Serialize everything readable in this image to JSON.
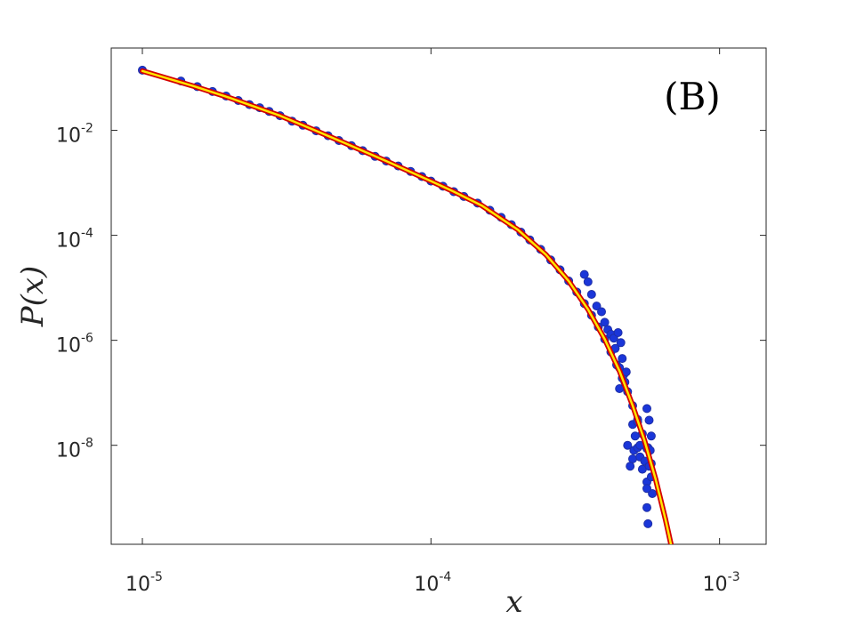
{
  "chart_data": {
    "type": "scatter",
    "title": "",
    "panel_label": "(B)",
    "xlabel": "x",
    "ylabel": "P(x)",
    "xscale": "log",
    "yscale": "log",
    "xlim": [
      7.8e-06,
      0.00145
    ],
    "ylim": [
      1.3e-10,
      0.37
    ],
    "grid": false,
    "x_ticks": [
      {
        "value": 1e-05,
        "base": "10",
        "exp": "-5"
      },
      {
        "value": 0.0001,
        "base": "10",
        "exp": "-4"
      },
      {
        "value": 0.001,
        "base": "10",
        "exp": "-3"
      }
    ],
    "y_ticks": [
      {
        "value": 0.01,
        "base": "10",
        "exp": "-2"
      },
      {
        "value": 0.0001,
        "base": "10",
        "exp": "-4"
      },
      {
        "value": 1e-06,
        "base": "10",
        "exp": "-6"
      },
      {
        "value": 1e-08,
        "base": "10",
        "exp": "-8"
      }
    ],
    "series": [
      {
        "kind": "points",
        "color": "#1a36d9",
        "edge_color": "#1f2fa6",
        "points": [
          [
            1e-05,
            0.14
          ],
          [
            1.36e-05,
            0.087
          ],
          [
            1.55e-05,
            0.068
          ],
          [
            1.75e-05,
            0.055
          ],
          [
            1.95e-05,
            0.045
          ],
          [
            2.15e-05,
            0.037
          ],
          [
            2.35e-05,
            0.031
          ],
          [
            2.55e-05,
            0.027
          ],
          [
            2.75e-05,
            0.023
          ],
          [
            3e-05,
            0.019
          ],
          [
            3.3e-05,
            0.015
          ],
          [
            3.6e-05,
            0.0125
          ],
          [
            4e-05,
            0.0098
          ],
          [
            4.4e-05,
            0.0079
          ],
          [
            4.8e-05,
            0.0064
          ],
          [
            5.3e-05,
            0.0051
          ],
          [
            5.8e-05,
            0.0041
          ],
          [
            6.4e-05,
            0.0032
          ],
          [
            7e-05,
            0.0026
          ],
          [
            7.7e-05,
            0.0021
          ],
          [
            8.5e-05,
            0.00165
          ],
          [
            9.3e-05,
            0.00132
          ],
          [
            0.0001,
            0.00108
          ],
          [
            0.00011,
            0.00086
          ],
          [
            0.00012,
            0.00068
          ],
          [
            0.00013,
            0.00055
          ],
          [
            0.000145,
            0.00041
          ],
          [
            0.00016,
            0.0003
          ],
          [
            0.000175,
            0.00022
          ],
          [
            0.00019,
            0.00016
          ],
          [
            0.000205,
            0.000115
          ],
          [
            0.00022,
            8.2e-05
          ],
          [
            0.00024,
            5.4e-05
          ],
          [
            0.00026,
            3.4e-05
          ],
          [
            0.00028,
            2.2e-05
          ],
          [
            0.0003,
            1.35e-05
          ],
          [
            0.00032,
            8.3e-06
          ],
          [
            0.00034,
            5e-06
          ],
          [
            0.00036,
            3e-06
          ],
          [
            0.00038,
            1.8e-06
          ],
          [
            0.0004,
            1.05e-06
          ],
          [
            0.00042,
            6e-07
          ],
          [
            0.00044,
            3.4e-07
          ],
          [
            0.00046,
            1.9e-07
          ],
          [
            0.00048,
            1.05e-07
          ],
          [
            0.0005,
            5.7e-08
          ],
          [
            0.00052,
            3.1e-08
          ],
          [
            0.00054,
            1.65e-08
          ],
          [
            0.00056,
            8.7e-09
          ],
          [
            0.00058,
            4.5e-09
          ],
          [
            0.00034,
            1.8e-05
          ],
          [
            0.00035,
            1.3e-05
          ],
          [
            0.00036,
            7.5e-06
          ],
          [
            0.000375,
            4.5e-06
          ],
          [
            0.00039,
            3.5e-06
          ],
          [
            0.0004,
            2.2e-06
          ],
          [
            0.00041,
            1.6e-06
          ],
          [
            0.00042,
            1.3e-06
          ],
          [
            0.00043,
            1.1e-06
          ],
          [
            0.000435,
            7e-07
          ],
          [
            0.000445,
            1.4e-06
          ],
          [
            0.000455,
            9e-07
          ],
          [
            0.00046,
            4.5e-07
          ],
          [
            0.000465,
            2.2e-07
          ],
          [
            0.00047,
            1.6e-07
          ],
          [
            0.000475,
            2.5e-07
          ],
          [
            0.00045,
            3e-07
          ],
          [
            0.00045,
            1.2e-07
          ],
          [
            0.0005,
            2.5e-08
          ],
          [
            0.00051,
            1.5e-08
          ],
          [
            0.000505,
            8e-09
          ],
          [
            0.0005,
            5.5e-09
          ],
          [
            0.00049,
            4e-09
          ],
          [
            0.00048,
            1e-08
          ],
          [
            0.00052,
            9e-09
          ],
          [
            0.00053,
            6e-09
          ],
          [
            0.00054,
            3.5e-09
          ],
          [
            0.00055,
            5e-09
          ],
          [
            0.00056,
            2e-09
          ],
          [
            0.000565,
            9e-09
          ],
          [
            0.00057,
            4e-09
          ],
          [
            0.000575,
            8e-09
          ],
          [
            0.00058,
            2.5e-09
          ],
          [
            0.000585,
            1.2e-09
          ],
          [
            0.00052,
            2.8e-08
          ],
          [
            0.00053,
            1e-08
          ],
          [
            0.00056,
            5e-08
          ],
          [
            0.00057,
            3e-08
          ],
          [
            0.00058,
            1.5e-08
          ],
          [
            0.00056,
            6.5e-10
          ],
          [
            0.000565,
            3.2e-10
          ],
          [
            0.00056,
            1.5e-09
          ]
        ]
      },
      {
        "kind": "fit-line",
        "color": "#ffe600",
        "outline_color": "#d40000",
        "points": [
          [
            1e-05,
            0.135
          ],
          [
            1.5e-05,
            0.07
          ],
          [
            2e-05,
            0.042
          ],
          [
            3e-05,
            0.019
          ],
          [
            4e-05,
            0.0098
          ],
          [
            5e-05,
            0.0058
          ],
          [
            7e-05,
            0.0026
          ],
          [
            0.0001,
            0.00108
          ],
          [
            0.00012,
            0.00068
          ],
          [
            0.00015,
            0.00037
          ],
          [
            0.0002,
            0.000128
          ],
          [
            0.00025,
            4.3e-05
          ],
          [
            0.0003,
            1.35e-05
          ],
          [
            0.00035,
            3.9e-06
          ],
          [
            0.0004,
            1.05e-06
          ],
          [
            0.00045,
            2.6e-07
          ],
          [
            0.0005,
            5.7e-08
          ],
          [
            0.00055,
            1.2e-08
          ],
          [
            0.0006,
            2.3e-09
          ],
          [
            0.00065,
            3.8e-10
          ],
          [
            0.0007,
            6e-11
          ]
        ]
      }
    ]
  }
}
